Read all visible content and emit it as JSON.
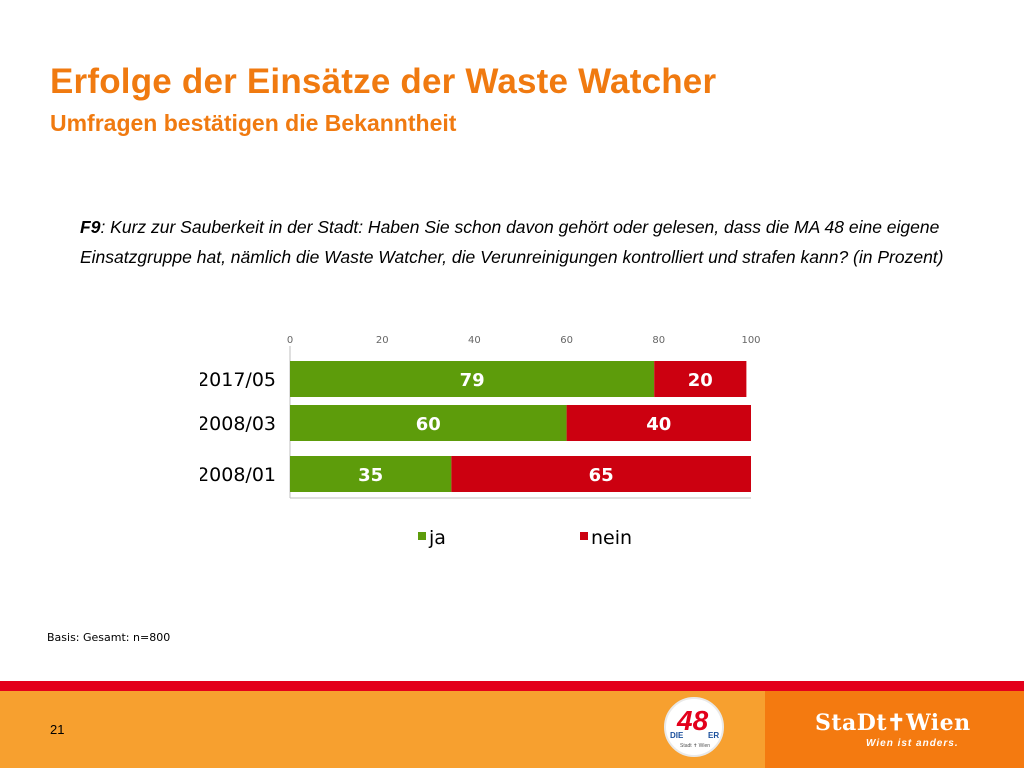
{
  "slide": {
    "title": "Erfolge der Einsätze der Waste Watcher",
    "subtitle": "Umfragen bestätigen die Bekanntheit",
    "question_id": "F9",
    "question_text": ": Kurz zur Sauberkeit in der Stadt: Haben Sie schon davon gehört oder gelesen, dass die MA 48 eine eigene Einsatzgruppe hat, nämlich die Waste Watcher, die Verunreinigungen kontrolliert und strafen kann? (in Prozent)",
    "basis": "Basis: Gesamt: n=800",
    "page_number": "21"
  },
  "footer": {
    "logo48_number": "48",
    "logo48_die": "DIE",
    "logo48_er": "ER",
    "logo48_small": "Stadt ✝ Wien",
    "city_logo": "StaDt✝Wien",
    "city_slogan": "Wien ist anders."
  },
  "colors": {
    "accent": "#f07a10",
    "ja": "#5d9c0b",
    "nein": "#cc0010",
    "footer_light": "#f7a02f",
    "footer_dark": "#f47a10",
    "footer_line": "#e3001b"
  },
  "chart_data": {
    "type": "bar",
    "orientation": "horizontal",
    "stacked": true,
    "categories": [
      "2017/05",
      "2008/03",
      "2008/01"
    ],
    "series": [
      {
        "name": "ja",
        "values": [
          79,
          60,
          35
        ],
        "color": "#5d9c0b"
      },
      {
        "name": "nein",
        "values": [
          20,
          40,
          65
        ],
        "color": "#cc0010"
      }
    ],
    "xlim": [
      0,
      100
    ],
    "xticks": [
      0,
      20,
      40,
      60,
      80,
      100
    ],
    "legend": "bottom",
    "grid": false
  }
}
